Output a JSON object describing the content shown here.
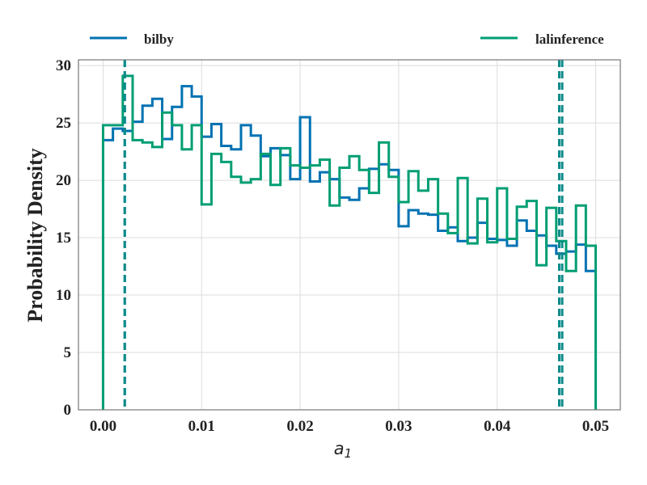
{
  "chart_data": {
    "type": "histogram-step",
    "xlabel": "a",
    "xlabel_subscript": "1",
    "ylabel": "Probability Density",
    "xlim": [
      -0.0025,
      0.0525
    ],
    "ylim": [
      0,
      30.5
    ],
    "grid": true,
    "legend_placement": "top, outside plot, horizontal",
    "xticks": [
      0.0,
      0.01,
      0.02,
      0.03,
      0.04,
      0.05
    ],
    "xtick_labels": [
      "0.00",
      "0.01",
      "0.02",
      "0.03",
      "0.04",
      "0.05"
    ],
    "yticks": [
      0,
      5,
      10,
      15,
      20,
      25,
      30
    ],
    "ytick_labels": [
      "0",
      "5",
      "10",
      "15",
      "20",
      "25",
      "30"
    ],
    "bin_edges": [
      0.0,
      0.001,
      0.002,
      0.003,
      0.004,
      0.005,
      0.006,
      0.007,
      0.008,
      0.009,
      0.01,
      0.011,
      0.012,
      0.013,
      0.014,
      0.015,
      0.016,
      0.017,
      0.018,
      0.019,
      0.02,
      0.021,
      0.022,
      0.023,
      0.024,
      0.025,
      0.026,
      0.027,
      0.028,
      0.029,
      0.03,
      0.031,
      0.032,
      0.033,
      0.034,
      0.035,
      0.036,
      0.037,
      0.038,
      0.039,
      0.04,
      0.041,
      0.042,
      0.043,
      0.044,
      0.045,
      0.046,
      0.047,
      0.048,
      0.049,
      0.05
    ],
    "series": [
      {
        "name": "bilby",
        "color": "#0072b2",
        "values": [
          23.5,
          24.5,
          24.3,
          25.1,
          26.5,
          27.1,
          23.6,
          26.4,
          28.2,
          27.3,
          23.8,
          24.9,
          23.0,
          22.7,
          24.8,
          23.9,
          22.1,
          22.8,
          22.2,
          20.1,
          25.5,
          19.9,
          20.7,
          20.1,
          18.5,
          18.3,
          19.3,
          21.0,
          21.4,
          20.9,
          16.0,
          17.4,
          17.1,
          17.0,
          15.6,
          15.9,
          14.7,
          15.0,
          16.3,
          14.9,
          14.8,
          14.3,
          16.5,
          15.6,
          15.2,
          14.3,
          13.6,
          13.8,
          14.4,
          12.1
        ]
      },
      {
        "name": "lalinference",
        "color": "#009e73",
        "values": [
          24.8,
          24.8,
          29.1,
          23.5,
          23.3,
          22.9,
          25.9,
          24.8,
          22.7,
          24.8,
          17.9,
          22.3,
          21.6,
          20.3,
          19.8,
          20.1,
          22.3,
          19.6,
          22.8,
          21.3,
          21.1,
          21.3,
          21.8,
          17.8,
          21.1,
          22.1,
          20.9,
          18.9,
          23.3,
          20.3,
          18.1,
          20.8,
          19.1,
          20.1,
          17.1,
          15.4,
          20.2,
          14.5,
          18.4,
          14.6,
          19.3,
          14.9,
          17.7,
          18.2,
          12.6,
          17.6,
          14.7,
          12.1,
          17.8,
          14.3
        ]
      }
    ],
    "bilby_bounds": [
      0.0022,
      0.0463
    ],
    "lalinference_bounds": [
      0.0022,
      0.0466
    ],
    "bounds_color": "#0b8a8a"
  }
}
